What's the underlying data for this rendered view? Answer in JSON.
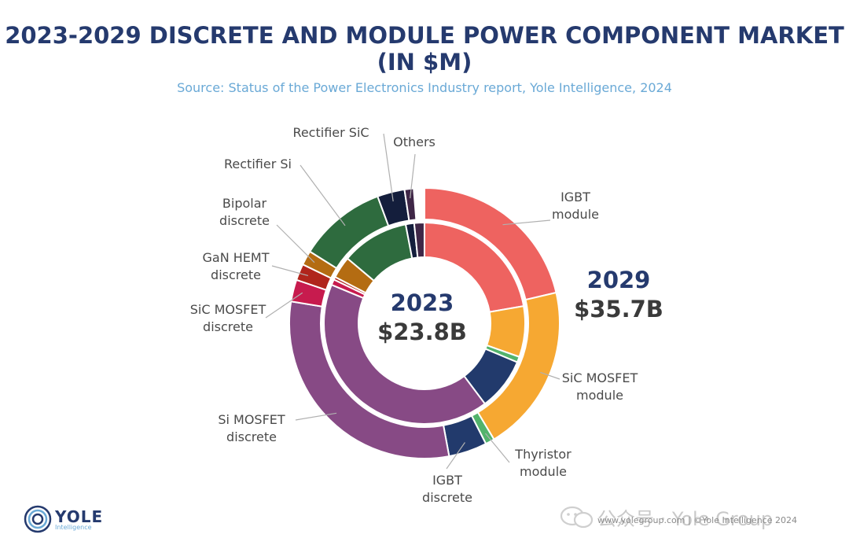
{
  "chart_data": {
    "type": "donut",
    "title": "2023-2029 DISCRETE AND MODULE POWER COMPONENT MARKET (IN $M)",
    "subtitle": "Source: Status of the Power Electronics Industry report, Yole Intelligence, 2024",
    "legend": "none",
    "rings": [
      {
        "name": "2023",
        "total_label": "$23.8B",
        "ring": "inner",
        "segments": [
          {
            "key": "igbt_module",
            "share": 0.2227
          },
          {
            "key": "sic_mosfet_module",
            "share": 0.0815
          },
          {
            "key": "thyristor_module",
            "share": 0.0091
          },
          {
            "key": "igbt_discrete",
            "share": 0.0842
          },
          {
            "key": "si_mosfet_discrete",
            "share": 0.4149
          },
          {
            "key": "sic_mosfet_discrete",
            "share": 0.0091
          },
          {
            "key": "gan_hemt_discrete",
            "share": 0.0045
          },
          {
            "key": "bipolar_discrete",
            "share": 0.0353
          },
          {
            "key": "rectifier_si",
            "share": 0.1087
          },
          {
            "key": "rectifier_sic",
            "share": 0.0136
          },
          {
            "key": "others",
            "share": 0.0163
          }
        ]
      },
      {
        "name": "2029",
        "total_label": "$35.7B",
        "ring": "outer",
        "segments": [
          {
            "key": "igbt_module",
            "share": 0.2136
          },
          {
            "key": "sic_mosfet_module",
            "share": 0.2005
          },
          {
            "key": "thyristor_module",
            "share": 0.0109
          },
          {
            "key": "igbt_discrete",
            "share": 0.0458
          },
          {
            "key": "si_mosfet_discrete",
            "share": 0.305
          },
          {
            "key": "sic_mosfet_discrete",
            "share": 0.0262
          },
          {
            "key": "gan_hemt_discrete",
            "share": 0.0196
          },
          {
            "key": "bipolar_discrete",
            "share": 0.0174
          },
          {
            "key": "rectifier_si",
            "share": 0.1046
          },
          {
            "key": "rectifier_sic",
            "share": 0.0327
          },
          {
            "key": "others",
            "share": 0.0109
          }
        ]
      }
    ],
    "categories": [
      {
        "key": "igbt_module",
        "lines": [
          "IGBT",
          "module"
        ],
        "color": "#ee6360"
      },
      {
        "key": "sic_mosfet_module",
        "lines": [
          "SiC MOSFET",
          "module"
        ],
        "color": "#f6a832"
      },
      {
        "key": "thyristor_module",
        "lines": [
          "Thyristor",
          "module"
        ],
        "color": "#52b36c"
      },
      {
        "key": "igbt_discrete",
        "lines": [
          "IGBT",
          "discrete"
        ],
        "color": "#223a6c"
      },
      {
        "key": "si_mosfet_discrete",
        "lines": [
          "Si MOSFET",
          "discrete"
        ],
        "color": "#874a85"
      },
      {
        "key": "sic_mosfet_discrete",
        "lines": [
          "SiC MOSFET",
          "discrete"
        ],
        "color": "#c71b4e"
      },
      {
        "key": "gan_hemt_discrete",
        "lines": [
          "GaN HEMT",
          "discrete"
        ],
        "color": "#b0251c"
      },
      {
        "key": "bipolar_discrete",
        "lines": [
          "Bipolar",
          "discrete"
        ],
        "color": "#b46c12"
      },
      {
        "key": "rectifier_si",
        "lines": [
          "Rectifier Si"
        ],
        "color": "#2e6b3e"
      },
      {
        "key": "rectifier_sic",
        "lines": [
          "Rectifier SiC"
        ],
        "color": "#141e3c"
      },
      {
        "key": "others",
        "lines": [
          "Others"
        ],
        "color": "#3f2747"
      }
    ]
  },
  "branding": {
    "logo_name": "YOLE",
    "logo_sub": "Intelligence",
    "watermark": "公众号 · Yole Group",
    "footer": "www.yolegroup.com | ©Yole Intelligence 2024"
  }
}
